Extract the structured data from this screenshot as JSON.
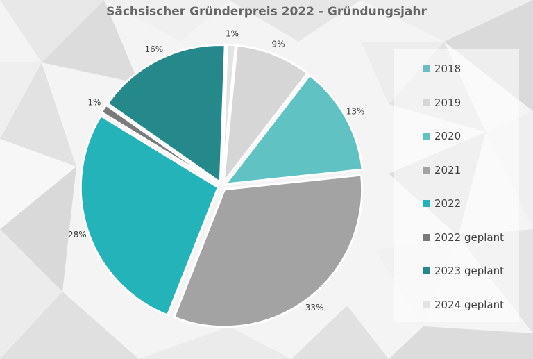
{
  "chart_data": {
    "type": "pie",
    "title": "Sächsischer Gründerpreis 2022 - Gründungsjahr",
    "categories": [
      "2018",
      "2019",
      "2020",
      "2021",
      "2022",
      "2022 geplant",
      "2023 geplant",
      "2024 geplant"
    ],
    "values": [
      0,
      9,
      13,
      33,
      28,
      1,
      16,
      1
    ],
    "data_labels": [
      "",
      "9%",
      "13%",
      "33%",
      "28%",
      "1%",
      "16%",
      "1%"
    ],
    "colors": [
      "#6bbcc4",
      "#d6d6d6",
      "#61c2c4",
      "#a3a3a3",
      "#25b3ba",
      "#7a7a7a",
      "#25888a",
      "#e3e3e3"
    ],
    "order": [
      7,
      1,
      2,
      3,
      4,
      5,
      6
    ],
    "legend_position": "right"
  }
}
